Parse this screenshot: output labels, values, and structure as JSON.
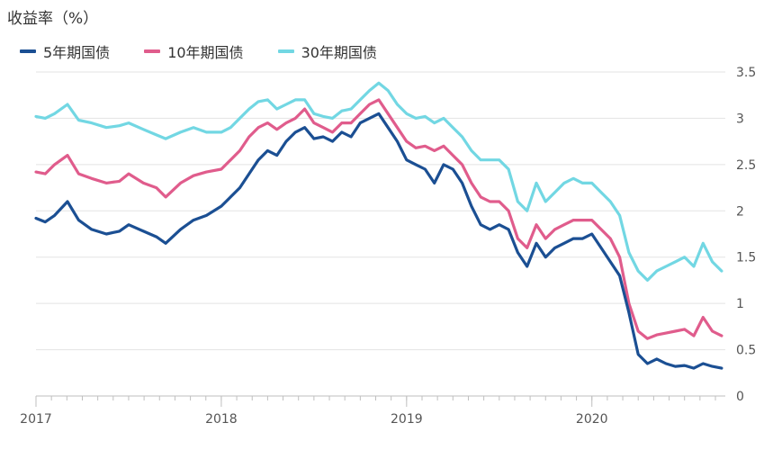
{
  "chart_data": {
    "type": "line",
    "ylabel": "收益率（%）",
    "ylim": [
      0,
      3.5
    ],
    "yticks": [
      "0",
      "0.5",
      "1",
      "1.5",
      "2",
      "2.5",
      "3",
      "3.5"
    ],
    "xlim": [
      2017.0,
      2020.72
    ],
    "xticks": [
      "2017",
      "2018",
      "2019",
      "2020"
    ],
    "grid": true,
    "legend_position": "top-left",
    "series": [
      {
        "name": "5年期国债",
        "color": "#1b4f93",
        "x": [
          2017.0,
          2017.05,
          2017.1,
          2017.17,
          2017.23,
          2017.3,
          2017.38,
          2017.45,
          2017.5,
          2017.58,
          2017.65,
          2017.7,
          2017.78,
          2017.85,
          2017.92,
          2018.0,
          2018.05,
          2018.1,
          2018.15,
          2018.2,
          2018.25,
          2018.3,
          2018.35,
          2018.4,
          2018.45,
          2018.5,
          2018.55,
          2018.6,
          2018.65,
          2018.7,
          2018.75,
          2018.8,
          2018.85,
          2018.9,
          2018.95,
          2019.0,
          2019.05,
          2019.1,
          2019.15,
          2019.2,
          2019.25,
          2019.3,
          2019.35,
          2019.4,
          2019.45,
          2019.5,
          2019.55,
          2019.6,
          2019.65,
          2019.7,
          2019.75,
          2019.8,
          2019.85,
          2019.9,
          2019.95,
          2020.0,
          2020.05,
          2020.1,
          2020.15,
          2020.2,
          2020.25,
          2020.3,
          2020.35,
          2020.4,
          2020.45,
          2020.5,
          2020.55,
          2020.6,
          2020.65,
          2020.7
        ],
        "values": [
          1.92,
          1.88,
          1.95,
          2.1,
          1.9,
          1.8,
          1.75,
          1.78,
          1.85,
          1.78,
          1.72,
          1.65,
          1.8,
          1.9,
          1.95,
          2.05,
          2.15,
          2.25,
          2.4,
          2.55,
          2.65,
          2.6,
          2.75,
          2.85,
          2.9,
          2.78,
          2.8,
          2.75,
          2.85,
          2.8,
          2.95,
          3.0,
          3.05,
          2.9,
          2.75,
          2.55,
          2.5,
          2.45,
          2.3,
          2.5,
          2.45,
          2.3,
          2.05,
          1.85,
          1.8,
          1.85,
          1.8,
          1.55,
          1.4,
          1.65,
          1.5,
          1.6,
          1.65,
          1.7,
          1.7,
          1.75,
          1.6,
          1.45,
          1.3,
          0.9,
          0.45,
          0.35,
          0.4,
          0.35,
          0.32,
          0.33,
          0.3,
          0.35,
          0.32,
          0.3
        ]
      },
      {
        "name": "10年期国债",
        "color": "#e05c8c",
        "x": [
          2017.0,
          2017.05,
          2017.1,
          2017.17,
          2017.23,
          2017.3,
          2017.38,
          2017.45,
          2017.5,
          2017.58,
          2017.65,
          2017.7,
          2017.78,
          2017.85,
          2017.92,
          2018.0,
          2018.05,
          2018.1,
          2018.15,
          2018.2,
          2018.25,
          2018.3,
          2018.35,
          2018.4,
          2018.45,
          2018.5,
          2018.55,
          2018.6,
          2018.65,
          2018.7,
          2018.75,
          2018.8,
          2018.85,
          2018.9,
          2018.95,
          2019.0,
          2019.05,
          2019.1,
          2019.15,
          2019.2,
          2019.25,
          2019.3,
          2019.35,
          2019.4,
          2019.45,
          2019.5,
          2019.55,
          2019.6,
          2019.65,
          2019.7,
          2019.75,
          2019.8,
          2019.85,
          2019.9,
          2019.95,
          2020.0,
          2020.05,
          2020.1,
          2020.15,
          2020.2,
          2020.25,
          2020.3,
          2020.35,
          2020.4,
          2020.45,
          2020.5,
          2020.55,
          2020.6,
          2020.65,
          2020.7
        ],
        "values": [
          2.42,
          2.4,
          2.5,
          2.6,
          2.4,
          2.35,
          2.3,
          2.32,
          2.4,
          2.3,
          2.25,
          2.15,
          2.3,
          2.38,
          2.42,
          2.45,
          2.55,
          2.65,
          2.8,
          2.9,
          2.95,
          2.88,
          2.95,
          3.0,
          3.1,
          2.95,
          2.9,
          2.85,
          2.95,
          2.95,
          3.05,
          3.15,
          3.2,
          3.05,
          2.9,
          2.75,
          2.68,
          2.7,
          2.65,
          2.7,
          2.6,
          2.5,
          2.3,
          2.15,
          2.1,
          2.1,
          2.0,
          1.7,
          1.6,
          1.85,
          1.7,
          1.8,
          1.85,
          1.9,
          1.9,
          1.9,
          1.8,
          1.7,
          1.5,
          1.0,
          0.7,
          0.62,
          0.66,
          0.68,
          0.7,
          0.72,
          0.65,
          0.85,
          0.7,
          0.65
        ]
      },
      {
        "name": "30年期国债",
        "color": "#72d7e3",
        "x": [
          2017.0,
          2017.05,
          2017.1,
          2017.17,
          2017.23,
          2017.3,
          2017.38,
          2017.45,
          2017.5,
          2017.58,
          2017.65,
          2017.7,
          2017.78,
          2017.85,
          2017.92,
          2018.0,
          2018.05,
          2018.1,
          2018.15,
          2018.2,
          2018.25,
          2018.3,
          2018.35,
          2018.4,
          2018.45,
          2018.5,
          2018.55,
          2018.6,
          2018.65,
          2018.7,
          2018.75,
          2018.8,
          2018.85,
          2018.9,
          2018.95,
          2019.0,
          2019.05,
          2019.1,
          2019.15,
          2019.2,
          2019.25,
          2019.3,
          2019.35,
          2019.4,
          2019.45,
          2019.5,
          2019.55,
          2019.6,
          2019.65,
          2019.7,
          2019.75,
          2019.8,
          2019.85,
          2019.9,
          2019.95,
          2020.0,
          2020.05,
          2020.1,
          2020.15,
          2020.2,
          2020.25,
          2020.3,
          2020.35,
          2020.4,
          2020.45,
          2020.5,
          2020.55,
          2020.6,
          2020.65,
          2020.7
        ],
        "values": [
          3.02,
          3.0,
          3.05,
          3.15,
          2.98,
          2.95,
          2.9,
          2.92,
          2.95,
          2.88,
          2.82,
          2.78,
          2.85,
          2.9,
          2.85,
          2.85,
          2.9,
          3.0,
          3.1,
          3.18,
          3.2,
          3.1,
          3.15,
          3.2,
          3.2,
          3.05,
          3.02,
          3.0,
          3.08,
          3.1,
          3.2,
          3.3,
          3.38,
          3.3,
          3.15,
          3.05,
          3.0,
          3.02,
          2.95,
          3.0,
          2.9,
          2.8,
          2.65,
          2.55,
          2.55,
          2.55,
          2.45,
          2.1,
          2.0,
          2.3,
          2.1,
          2.2,
          2.3,
          2.35,
          2.3,
          2.3,
          2.2,
          2.1,
          1.95,
          1.55,
          1.35,
          1.25,
          1.35,
          1.4,
          1.45,
          1.5,
          1.4,
          1.65,
          1.45,
          1.35
        ]
      }
    ]
  }
}
